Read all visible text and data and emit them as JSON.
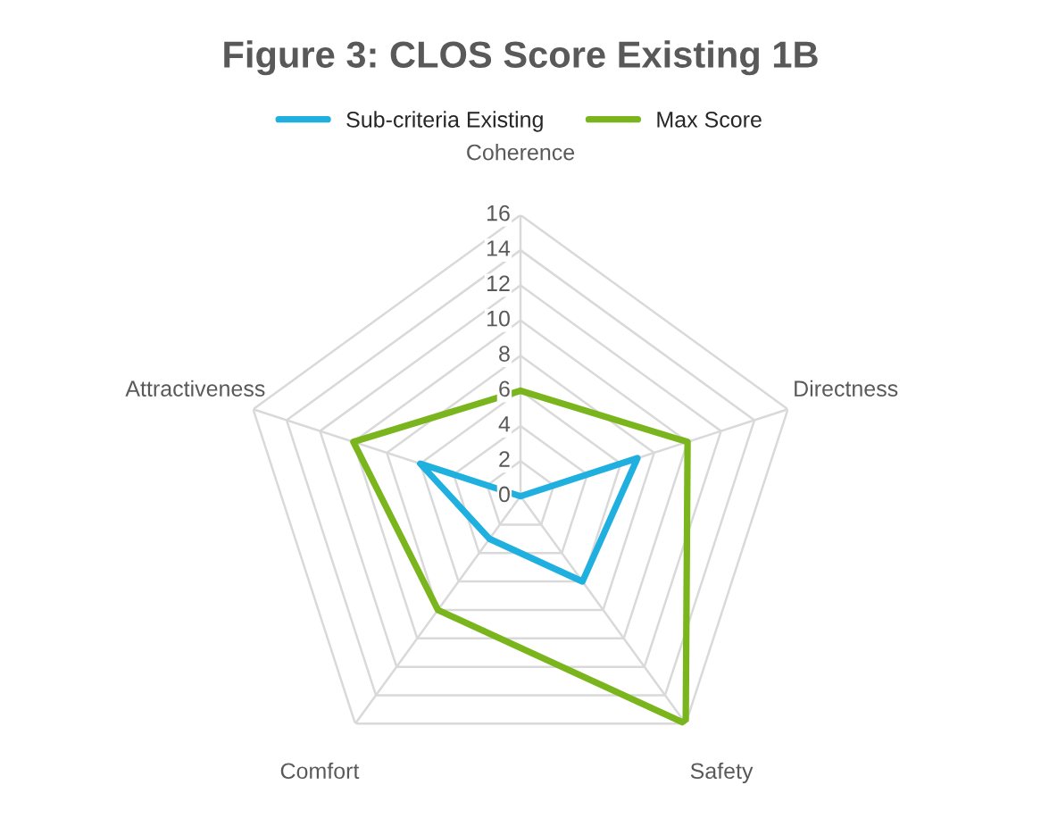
{
  "chart_data": {
    "type": "radar",
    "title": "Figure 3: CLOS Score Existing 1B",
    "categories": [
      "Coherence",
      "Directness",
      "Safety",
      "Comfort",
      "Attractiveness"
    ],
    "series": [
      {
        "name": "Sub-criteria Existing",
        "color": "#1fb0e0",
        "values": [
          0,
          7,
          6,
          3,
          6
        ]
      },
      {
        "name": "Max Score",
        "color": "#7ab51d",
        "values": [
          6,
          10,
          16,
          8,
          10
        ]
      }
    ],
    "ylim": [
      0,
      16
    ],
    "yticks": [
      0,
      2,
      4,
      6,
      8,
      10,
      12,
      14,
      16
    ],
    "grid": true,
    "legend": "top",
    "marker": "none",
    "line_style": "solid"
  }
}
